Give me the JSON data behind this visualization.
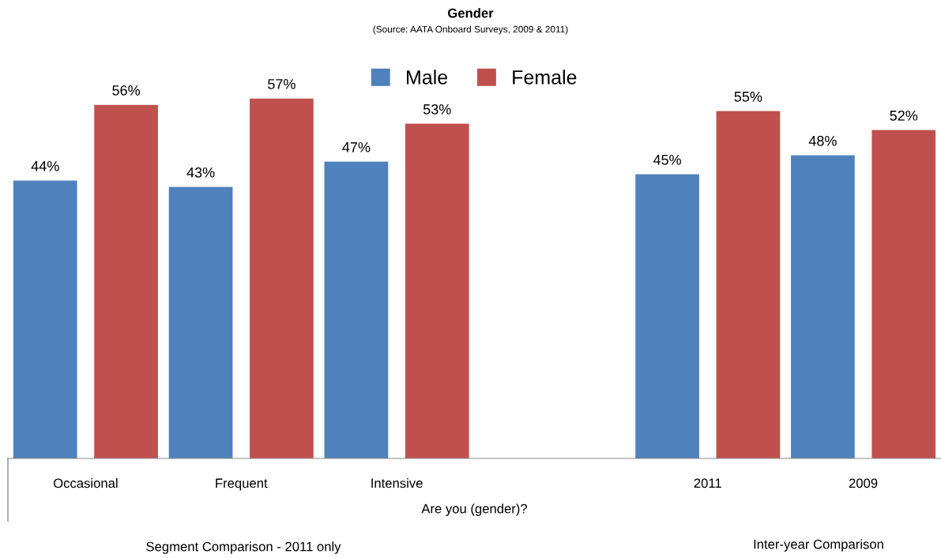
{
  "chart_data": {
    "type": "bar",
    "title": "Gender",
    "subtitle": "(Source: AATA Onboard Surveys, 2009 & 2011)",
    "xlabel": "Are you (gender)?",
    "categories": [
      "Occasional",
      "Frequent",
      "Intensive",
      null,
      "2011",
      "2009"
    ],
    "series": [
      {
        "name": "Male",
        "color": "#4f81bd",
        "values": [
          44,
          43,
          47,
          null,
          45,
          48
        ],
        "value_labels": [
          "44%",
          "43%",
          "47%",
          null,
          "45%",
          "48%"
        ]
      },
      {
        "name": "Female",
        "color": "#c0504d",
        "values": [
          56,
          57,
          53,
          null,
          55,
          52
        ],
        "value_labels": [
          "56%",
          "57%",
          "53%",
          null,
          "55%",
          "52%"
        ]
      }
    ],
    "tick_labels": "x",
    "legend": "top",
    "grid": false,
    "annotations": [
      "Segment Comparison - 2011 only",
      "Inter-year Comparison"
    ]
  }
}
